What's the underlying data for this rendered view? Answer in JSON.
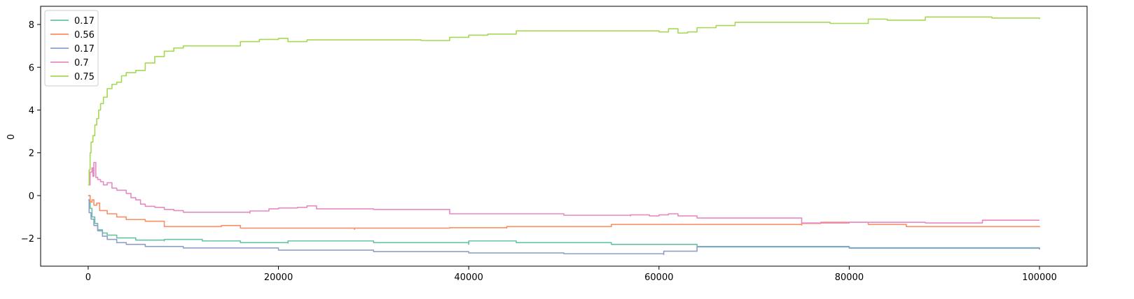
{
  "chart_data": {
    "type": "line",
    "title": "",
    "xlabel": "",
    "ylabel": "0",
    "xlim": [
      -5000,
      105000
    ],
    "ylim": [
      -3.3,
      8.85
    ],
    "xticks": [
      0,
      20000,
      40000,
      60000,
      80000,
      100000
    ],
    "xtick_labels": [
      "0",
      "20000",
      "40000",
      "60000",
      "80000",
      "100000"
    ],
    "yticks": [
      -2,
      0,
      2,
      4,
      6,
      8
    ],
    "ytick_labels": [
      "−2",
      "0",
      "2",
      "4",
      "6",
      "8"
    ],
    "grid": false,
    "legend_position": "upper-left",
    "series": [
      {
        "name": "0.17",
        "color": "#66c2a5",
        "points": [
          [
            0,
            0
          ],
          [
            200,
            -0.6
          ],
          [
            400,
            -1.0
          ],
          [
            700,
            -1.3
          ],
          [
            1000,
            -1.6
          ],
          [
            1500,
            -1.75
          ],
          [
            2000,
            -1.85
          ],
          [
            3000,
            -1.98
          ],
          [
            5000,
            -2.08
          ],
          [
            8000,
            -2.12
          ],
          [
            8000,
            -2.05
          ],
          [
            12000,
            -2.12
          ],
          [
            16000,
            -2.2
          ],
          [
            21000,
            -2.22
          ],
          [
            21000,
            -2.12
          ],
          [
            30000,
            -2.2
          ],
          [
            40000,
            -2.28
          ],
          [
            40000,
            -2.12
          ],
          [
            45000,
            -2.2
          ],
          [
            55000,
            -2.28
          ],
          [
            64000,
            -2.33
          ],
          [
            64000,
            -2.38
          ],
          [
            80000,
            -2.44
          ],
          [
            100000,
            -2.5
          ]
        ]
      },
      {
        "name": "0.56",
        "color": "#fc8d62",
        "points": [
          [
            0,
            0
          ],
          [
            200,
            -0.3
          ],
          [
            400,
            -0.2
          ],
          [
            600,
            -0.45
          ],
          [
            900,
            -0.35
          ],
          [
            1200,
            -0.7
          ],
          [
            2000,
            -0.85
          ],
          [
            3000,
            -1.0
          ],
          [
            4000,
            -1.12
          ],
          [
            6000,
            -1.2
          ],
          [
            8000,
            -1.28
          ],
          [
            8000,
            -1.45
          ],
          [
            14000,
            -1.45
          ],
          [
            14000,
            -1.4
          ],
          [
            16000,
            -1.52
          ],
          [
            28000,
            -1.58
          ],
          [
            28000,
            -1.52
          ],
          [
            38000,
            -1.5
          ],
          [
            44000,
            -1.52
          ],
          [
            44000,
            -1.45
          ],
          [
            55000,
            -1.42
          ],
          [
            55000,
            -1.35
          ],
          [
            64000,
            -1.35
          ],
          [
            75000,
            -1.38
          ],
          [
            75000,
            -1.3
          ],
          [
            77000,
            -1.25
          ],
          [
            82000,
            -1.25
          ],
          [
            82000,
            -1.35
          ],
          [
            86000,
            -1.35
          ],
          [
            86000,
            -1.45
          ],
          [
            100000,
            -1.48
          ]
        ]
      },
      {
        "name": "0.17",
        "color": "#8da0cb",
        "points": [
          [
            0,
            -0.2
          ],
          [
            100,
            -0.8
          ],
          [
            300,
            -1.1
          ],
          [
            600,
            -1.4
          ],
          [
            1000,
            -1.65
          ],
          [
            1500,
            -1.9
          ],
          [
            2000,
            -2.05
          ],
          [
            3000,
            -2.2
          ],
          [
            4000,
            -2.28
          ],
          [
            6000,
            -2.38
          ],
          [
            10000,
            -2.45
          ],
          [
            20000,
            -2.55
          ],
          [
            30000,
            -2.62
          ],
          [
            40000,
            -2.68
          ],
          [
            50000,
            -2.72
          ],
          [
            60500,
            -2.76
          ],
          [
            60500,
            -2.6
          ],
          [
            64000,
            -2.58
          ],
          [
            64000,
            -2.4
          ],
          [
            80000,
            -2.46
          ],
          [
            100000,
            -2.52
          ]
        ]
      },
      {
        "name": "0.7",
        "color": "#e78ac3",
        "points": [
          [
            0,
            0.5
          ],
          [
            200,
            1.1
          ],
          [
            400,
            1.3
          ],
          [
            500,
            0.9
          ],
          [
            600,
            1.55
          ],
          [
            800,
            0.85
          ],
          [
            1000,
            0.75
          ],
          [
            1300,
            0.65
          ],
          [
            1600,
            0.5
          ],
          [
            2000,
            0.6
          ],
          [
            2500,
            0.35
          ],
          [
            3000,
            0.25
          ],
          [
            4000,
            0.1
          ],
          [
            4500,
            -0.1
          ],
          [
            5000,
            -0.2
          ],
          [
            5500,
            -0.4
          ],
          [
            6000,
            -0.5
          ],
          [
            7000,
            -0.55
          ],
          [
            8000,
            -0.65
          ],
          [
            9000,
            -0.7
          ],
          [
            10000,
            -0.78
          ],
          [
            13000,
            -0.78
          ],
          [
            17000,
            -0.82
          ],
          [
            17000,
            -0.72
          ],
          [
            19000,
            -0.62
          ],
          [
            20000,
            -0.58
          ],
          [
            22000,
            -0.55
          ],
          [
            23000,
            -0.48
          ],
          [
            24000,
            -0.62
          ],
          [
            30000,
            -0.65
          ],
          [
            38000,
            -0.7
          ],
          [
            38000,
            -0.85
          ],
          [
            50000,
            -0.92
          ],
          [
            57000,
            -0.95
          ],
          [
            57000,
            -0.9
          ],
          [
            59000,
            -0.95
          ],
          [
            60000,
            -0.9
          ],
          [
            61000,
            -0.85
          ],
          [
            62000,
            -0.95
          ],
          [
            64000,
            -1.05
          ],
          [
            75000,
            -1.12
          ],
          [
            75000,
            -1.28
          ],
          [
            80000,
            -1.25
          ],
          [
            88000,
            -1.28
          ],
          [
            94000,
            -1.28
          ],
          [
            94000,
            -1.15
          ],
          [
            100000,
            -1.15
          ]
        ]
      },
      {
        "name": "0.75",
        "color": "#a6d854",
        "points": [
          [
            0,
            0.5
          ],
          [
            100,
            1.2
          ],
          [
            200,
            2.0
          ],
          [
            300,
            2.5
          ],
          [
            500,
            2.8
          ],
          [
            700,
            3.3
          ],
          [
            900,
            3.6
          ],
          [
            1100,
            4.0
          ],
          [
            1300,
            4.3
          ],
          [
            1600,
            4.6
          ],
          [
            2000,
            5.0
          ],
          [
            2500,
            5.2
          ],
          [
            3000,
            5.3
          ],
          [
            3500,
            5.6
          ],
          [
            4000,
            5.75
          ],
          [
            5000,
            5.85
          ],
          [
            6000,
            6.2
          ],
          [
            7000,
            6.5
          ],
          [
            8000,
            6.75
          ],
          [
            9000,
            6.9
          ],
          [
            10000,
            7.0
          ],
          [
            14000,
            7.0
          ],
          [
            16000,
            7.2
          ],
          [
            18000,
            7.3
          ],
          [
            20000,
            7.35
          ],
          [
            21000,
            7.2
          ],
          [
            22000,
            7.2
          ],
          [
            23000,
            7.28
          ],
          [
            30000,
            7.28
          ],
          [
            35000,
            7.25
          ],
          [
            38000,
            7.3
          ],
          [
            38000,
            7.4
          ],
          [
            40000,
            7.5
          ],
          [
            42000,
            7.55
          ],
          [
            45000,
            7.7
          ],
          [
            55000,
            7.7
          ],
          [
            60000,
            7.65
          ],
          [
            61000,
            7.8
          ],
          [
            62000,
            7.6
          ],
          [
            63000,
            7.65
          ],
          [
            64000,
            7.85
          ],
          [
            66000,
            7.95
          ],
          [
            68000,
            8.1
          ],
          [
            78000,
            8.05
          ],
          [
            82000,
            8.05
          ],
          [
            82000,
            8.25
          ],
          [
            84000,
            8.2
          ],
          [
            88000,
            8.35
          ],
          [
            95000,
            8.3
          ],
          [
            100000,
            8.25
          ]
        ]
      }
    ]
  }
}
